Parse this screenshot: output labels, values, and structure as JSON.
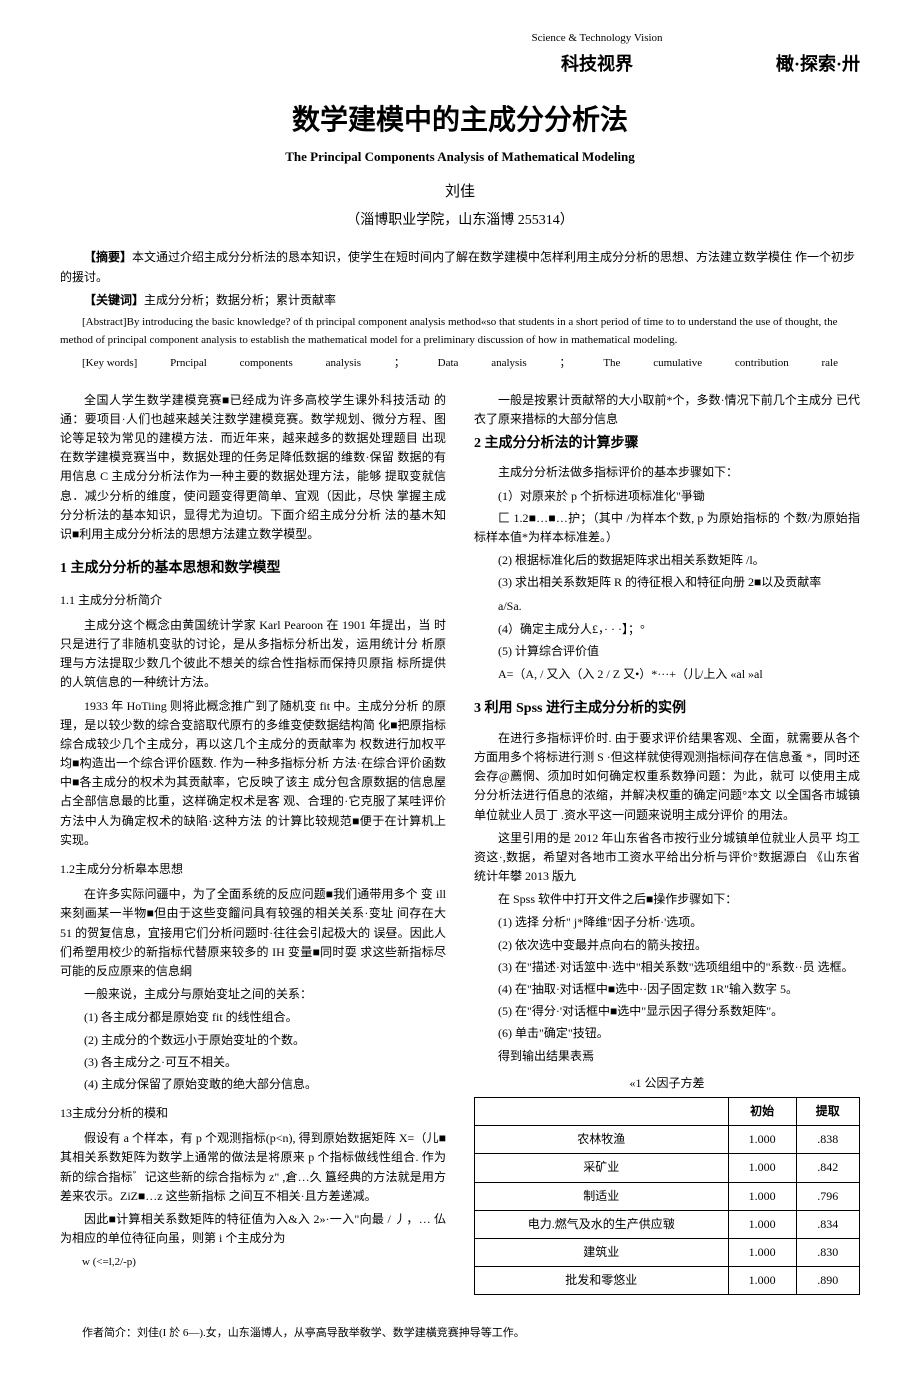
{
  "header": {
    "journal_en": "Science & Technology Vision",
    "journal_cn": "科技视界",
    "right_tag": "橄·探索·卅"
  },
  "title": {
    "cn": "数学建模中的主成分分析法",
    "en": "The Principal Components Analysis of Mathematical Modeling",
    "author": "刘佳",
    "affiliation": "（淄博职业学院，山东淄博 255314）"
  },
  "abstract": {
    "cn_label": "【摘要】",
    "cn_text": "本文通过介绍主成分分析法的恳本知识，使学生在短时间内了解在数学建模中怎样利用主成分分析的思想、方法建立数学模住 作一个初步的援讨。",
    "kw_cn_label": "【关键词】",
    "kw_cn_text": "主成分分析；数据分析；累计贡献率",
    "en_label": "[Abstract]",
    "en_text": "By introducing the basic knowledge? of th principal component analysis method«so that students in a short period of time to to understand the use of thought, the method of principal component analysis to establish the mathematical model for a preliminary discussion of how in mathematical modeling.",
    "kw_en_label": "[Key    words]",
    "kw_en_parts": [
      "Prncipal",
      "components",
      "analysis",
      "；",
      "Data",
      "analysis",
      "；",
      "The",
      "cumulative",
      "contribution",
      "rale"
    ]
  },
  "left": {
    "intro_p1": "全国人学生数学建模竞赛■已经成为许多高校学生课外科技活动 的通：要项目·人们也越来越关注数学建模竞赛。数学规划、微分方程、图论等足较为常见的建模方法．而近年来，越来越多的数据处理题目 出现在数学建模竞赛当中，数据处理的任务足降低数据的维数·保留 数据的有用信息 C 主成分分析法作为一种主要的数据处理方法，能够 提取变就信息．减少分析的维度，使问题变得更简单、宜观（因此，尽快 掌握主成分分析法的基本知识，显得尤为迫切。下面介绍主成分分析 法的基木知识■利用主成分分析法的思想方法建立数学模型。",
    "h1_1": "1 主成分分析的基本思想和数学模型",
    "h2_11": "1.1 主成分分析简介",
    "p11a": "主成分这个概念由黄国统计学家 Karl Pearoon 在 1901 年提出，当 时只是进行了非随机变驮的讨论，是从多指标分析出发，运用统计分 析原理与方法提取少数几个彼此不想关的综合性指标而保持贝原指 标所提供的人筑信息的一种统计方法。",
    "p11b": "1933 年 HoTiing 则将此概念推广到了随机变 fit 中。主成分分析 的原理，是以较少数的综合变諮取代原冇的多维变使数据结构简 化■把原指标综合成较少几个主成分，再以这几个主成分的贡献率为 权数进行加权平均■构造出一个综合评价瓯数. 作为一种多指标分析 方法·在综合评价函数中■各主成分的权术为其贡献率，它反映了该主 成分包含原数据的信息屋占全部信息最的比重，这样确定权术是客 观、合理的·它克服了某哇评价方法中人为确定权术的缺陷·这种方法 的计算比较规范■便于在计算机上实现。",
    "h2_12": "1.2主成分分析皋本思想",
    "p12a": "在许多实际问疆中，为了全面系统的反应问题■我们通带用多个 变 ill 来刻画某一半物■但由于这些变餾问具有较强的相关关系·变址 间存在大 51 的贺复信息，宜接用它们分析问题时·往往会引起极大的 误昼。因此人们希塑用校少的新指标代替原来较多的 IH 变量■同时耍 求这些新指标尽可能的反应原来的信息綱",
    "p12b": "一般来说，主成分与原始变址之间的关系：",
    "li1": "(1)    各主成分都是原始变 fit 的线性组合。",
    "li2": "(2)    主成分的个数远小于原始变址的个数。",
    "li3": "(3)    各主成分之·可互不相关。",
    "li4": "(4)    主成分保留了原始变敢的绝大部分信息。",
    "h2_13": "13主成分分析的模和",
    "p13a": "假设有 a 个样本，有 p 个观测指标(p<n), 得到原始数据矩阵 X=（儿■其相关系数矩阵为数学上通常的做法是将原来 p 个指标做线性组合. 作为新的综合指标゛记这些新的综合指标为 z\" ,倉…久 簋经典的方法就是用方差来农示。ZiZ■…z 这些新指标 之间互不相关·且方差递减。",
    "p13b": "因此■计算相关系数矩阵的特征值为入&入 2»·一入\"向最 / 丿，… 仏为相应的单位待征向虽，则第 i 个主成分为",
    "p13c": "w (<=l,2/-p)"
  },
  "right": {
    "intro_r": "一般是按累计贡献帑的大小取前*个，多数·情况下前几个主成分 已代衣了原来措标的大部分信息",
    "h1_2": "2 主成分分析法的计算步骤",
    "p2a": "主成分分析法做多指标评价的基本步骤如下：",
    "li2_1": "(1）对原来於 p 个折标进项标准化\"爭锄",
    "p2b": "匚 1.2■…■…护；（其中 /为样本个数, p 为原始指标的 个数/为原始指标样本值*为样本标准差。）",
    "li2_2": "(2)    根据标准化后的数据矩阵求出相关系数矩阵 /l。",
    "li2_3": "(3)    求出相关系数矩阵 R 的待征根入和特征向册 2■以及贡献率",
    "formula_a": "a/Sa.",
    "li2_4": "(4）确定主成分人£，· · ·】；°",
    "li2_5": "(5)            计算综合评价值",
    "formula_A": "A=（A, / 又入（入 2 / Z 又•）*···+（儿/上入 «al   »al",
    "h1_3": "3 利用 Spss 进行主成分分析的实例",
    "p3a": "在进行多指标评价时. 由于要求评价结果客观、全面，就需要从各个方面用多个将标进行测 S ·但这样就使得观测指标间存在信息蚤 *，同时还会存@薦惘、须加时如何确定权重系数狰问题：为此，就可 以使用主成分分析法进行佰息的浓缩，并解决权重的确定问题°本文 以全国各市城镇单位就业人员丁 .资水平这一问题来说明主成分评价 的用法。",
    "p3b": "这里引用的是 2012 年山东省各市按行业分城镇单位就业人员平 均工资这·,数据，希望对各地市工资水平给出分析与评价°数据源白 《山东省统计年攀 2013 版九",
    "p3c": "在 Spss 软件中打开文件之后■操作步骤如下：",
    "s1": "(1)    选择 分析\"  j*降维\"因子分析·'选项。",
    "s2": "(2)    依次选中变最并点向右的箭头按扭。",
    "s3": "(3)    在\"描述·对话筮中·选中\"相关系数\"选项组组中的\"系数··员 选框。",
    "s4": "(4)    在\"抽取·对话框中■选中··因子固定数 1R\"输入数字 5。",
    "s5": "(5)    在\"得分·'对话框中■选中\"显示因子得分系数矩阵\"。",
    "s6": "(6)    单击\"确定\"技钮。",
    "s7": "得到输出结果表焉",
    "table_caption": "«1 公因子方差",
    "table": {
      "columns": [
        "",
        "初始",
        "提取"
      ],
      "rows": [
        [
          "农林牧渔",
          "1.000",
          ".838"
        ],
        [
          "采矿业",
          "1.000",
          ".842"
        ],
        [
          "制适业",
          "1.000",
          ".796"
        ],
        [
          "电力.燃气及水的生产供应皲",
          "1.000",
          ".834"
        ],
        [
          "建筑业",
          "1.000",
          ".830"
        ],
        [
          "批发和零悠业",
          "1.000",
          ".890"
        ]
      ],
      "col_widths": [
        "60%",
        "20%",
        "20%"
      ],
      "border_color": "#000000",
      "header_bold": true
    }
  },
  "footer": "作者简介：刘佳(I 於 6—).女，山东淄博人，从亭高导敔举敎学、数学建橫竞赛抻导等工作。"
}
